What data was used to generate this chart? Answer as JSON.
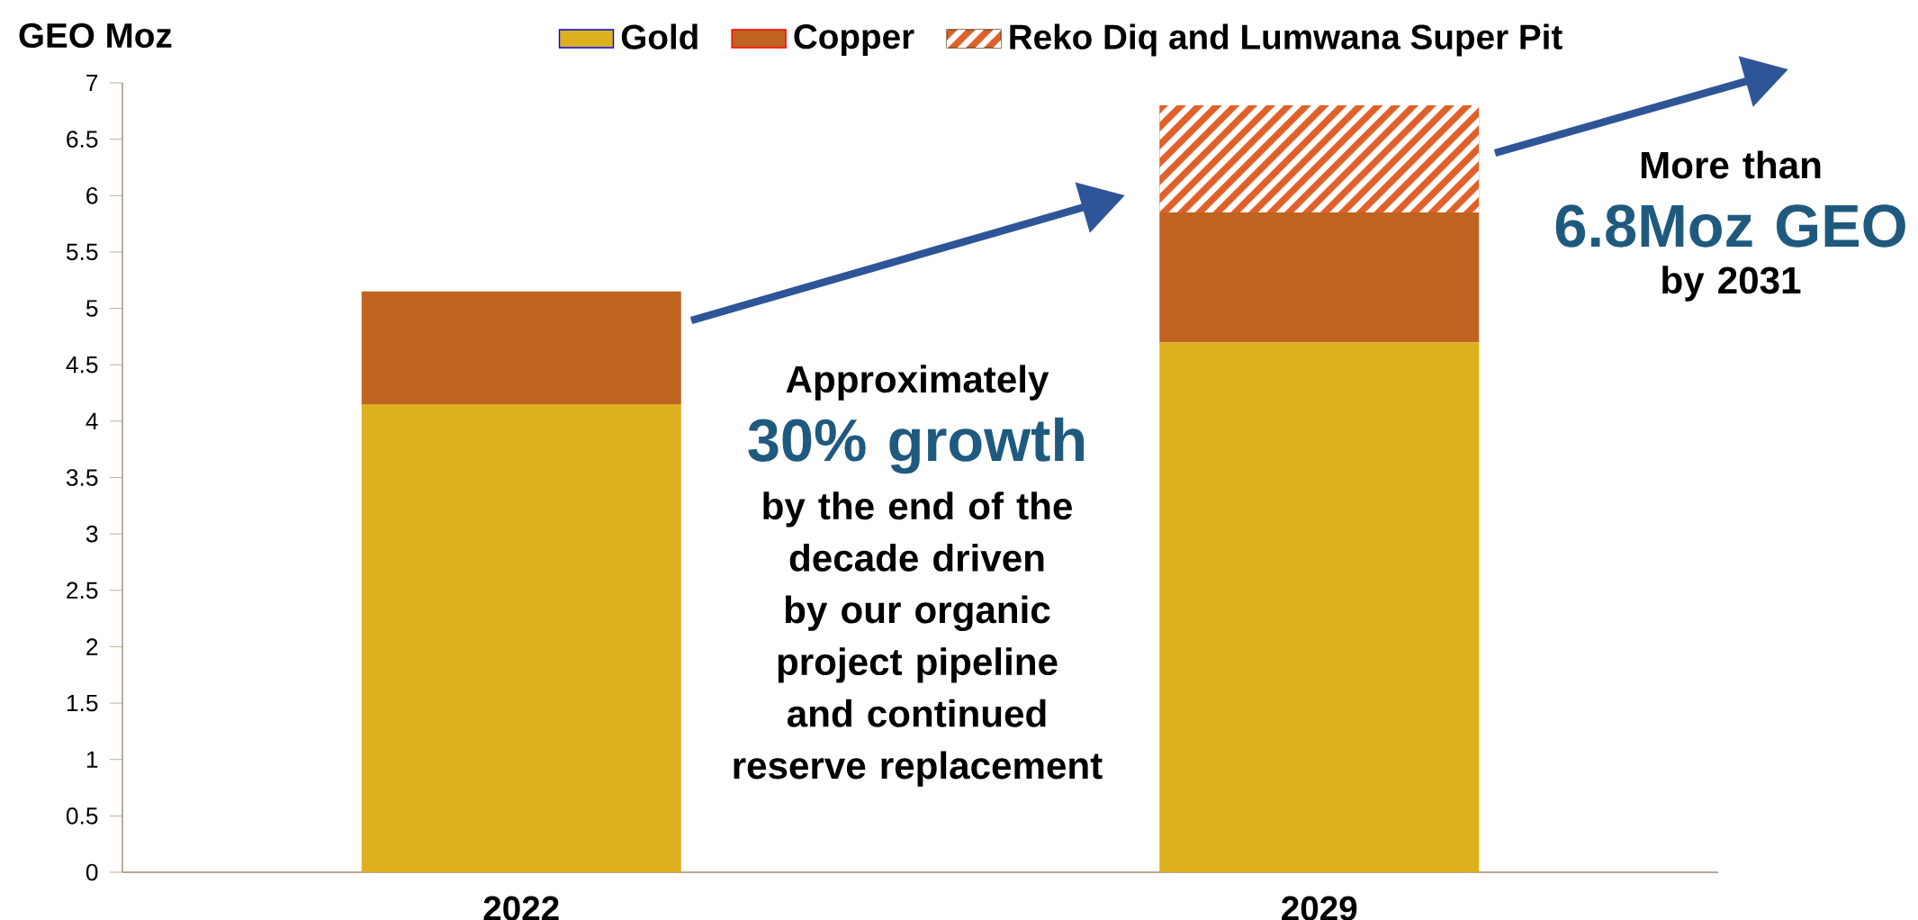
{
  "chart_data": {
    "type": "bar",
    "stacked": true,
    "ylabel": "GEO Moz",
    "categories": [
      "2022",
      "2029"
    ],
    "series": [
      {
        "name": "Gold",
        "color": "#dcb01e",
        "values": [
          4.15,
          4.7
        ]
      },
      {
        "name": "Copper",
        "color": "#be6420",
        "values": [
          1.0,
          1.15
        ]
      },
      {
        "name": "Reko Diq and Lumwana Super Pit",
        "color": "#e0602a",
        "values": [
          null,
          0.95
        ]
      }
    ],
    "ylim": [
      0,
      7
    ],
    "yticks": [
      0,
      0.5,
      1,
      1.5,
      2,
      2.5,
      3,
      3.5,
      4,
      4.5,
      5,
      5.5,
      6,
      6.5,
      7
    ],
    "legend": "top",
    "grid": false,
    "annotations": [
      "Approximately",
      "30% growth",
      "by the end of the decade driven by our organic project pipeline and continued reserve replacement",
      "More than",
      "6.8Moz GEO",
      "by 2031"
    ]
  }
}
